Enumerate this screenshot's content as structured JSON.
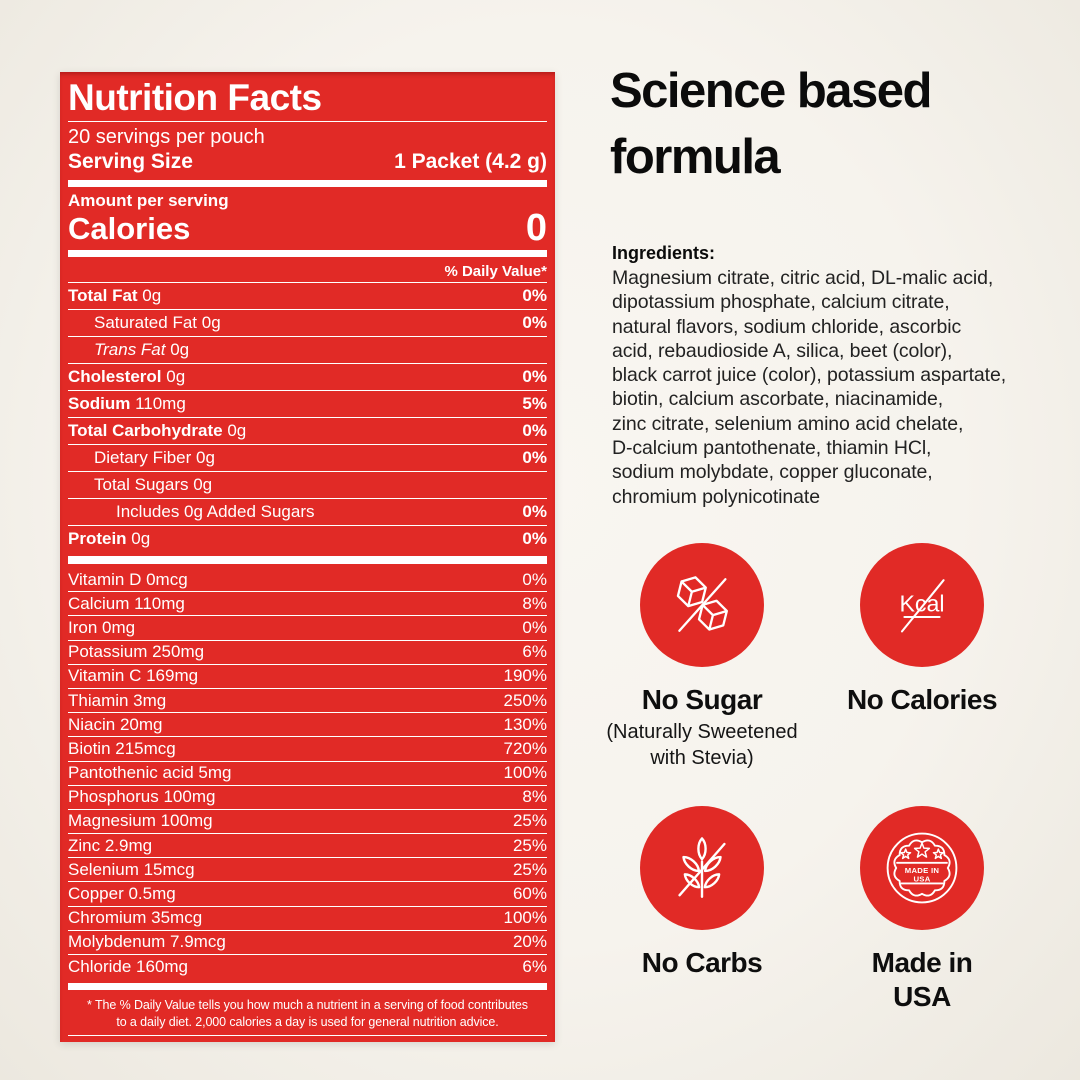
{
  "colors": {
    "red": "#E12A26",
    "background": "#F6F3ED",
    "ink": "#111111",
    "white": "#FFFFFF"
  },
  "label": {
    "title": "Nutrition Facts",
    "servings_line": "20 servings per pouch",
    "serving_size_label": "Serving Size",
    "serving_size_value": "1 Packet (4.2 g)",
    "amount_per_serving": "Amount per serving",
    "calories_label": "Calories",
    "calories_value": "0",
    "daily_value_header": "% Daily Value*",
    "main_rows": [
      {
        "name": "Total Fat",
        "amount": "0g",
        "dv": "0%",
        "bold": true,
        "indent": 0,
        "italic": false
      },
      {
        "name": "Saturated Fat",
        "amount": "0g",
        "dv": "0%",
        "bold": false,
        "indent": 1,
        "italic": false
      },
      {
        "name": "Trans Fat",
        "amount": "0g",
        "dv": "",
        "bold": false,
        "indent": 1,
        "italic": true
      },
      {
        "name": "Cholesterol",
        "amount": "0g",
        "dv": "0%",
        "bold": true,
        "indent": 0,
        "italic": false
      },
      {
        "name": "Sodium",
        "amount": "110mg",
        "dv": "5%",
        "bold": true,
        "indent": 0,
        "italic": false
      },
      {
        "name": "Total Carbohydrate",
        "amount": "0g",
        "dv": "0%",
        "bold": true,
        "indent": 0,
        "italic": false
      },
      {
        "name": "Dietary Fiber",
        "amount": "0g",
        "dv": "0%",
        "bold": false,
        "indent": 1,
        "italic": false
      },
      {
        "name": "Total Sugars",
        "amount": "0g",
        "dv": "",
        "bold": false,
        "indent": 1,
        "italic": false
      },
      {
        "name": "Includes 0g Added Sugars",
        "amount": "",
        "dv": "0%",
        "bold": false,
        "indent": 2,
        "italic": false
      },
      {
        "name": "Protein",
        "amount": "0g",
        "dv": "0%",
        "bold": true,
        "indent": 0,
        "italic": false
      }
    ],
    "vitamin_rows": [
      {
        "name": "Vitamin D 0mcg",
        "dv": "0%"
      },
      {
        "name": "Calcium 110mg",
        "dv": "8%"
      },
      {
        "name": "Iron 0mg",
        "dv": "0%"
      },
      {
        "name": "Potassium 250mg",
        "dv": "6%"
      },
      {
        "name": "Vitamin C 169mg",
        "dv": "190%"
      },
      {
        "name": "Thiamin 3mg",
        "dv": "250%"
      },
      {
        "name": "Niacin 20mg",
        "dv": "130%"
      },
      {
        "name": "Biotin 215mcg",
        "dv": "720%"
      },
      {
        "name": "Pantothenic acid 5mg",
        "dv": "100%"
      },
      {
        "name": "Phosphorus 100mg",
        "dv": "8%"
      },
      {
        "name": "Magnesium 100mg",
        "dv": "25%"
      },
      {
        "name": "Zinc 2.9mg",
        "dv": "25%"
      },
      {
        "name": "Selenium 15mcg",
        "dv": "25%"
      },
      {
        "name": "Copper 0.5mg",
        "dv": "60%"
      },
      {
        "name": "Chromium 35mcg",
        "dv": "100%"
      },
      {
        "name": "Molybdenum 7.9mcg",
        "dv": "20%"
      },
      {
        "name": "Chloride 160mg",
        "dv": "6%"
      }
    ],
    "footnote": "* The % Daily Value tells you how much a nutrient in a serving of food contributes\nto a daily diet. 2,000 calories a day is used for general nutrition advice."
  },
  "right": {
    "heading": "Science based\nformula",
    "ingredients_label": "Ingredients:",
    "ingredients_text": "Magnesium citrate, citric acid, DL-malic acid,\ndipotassium phosphate, calcium citrate,\nnatural flavors, sodium chloride, ascorbic\nacid, rebaudioside A, silica, beet (color),\nblack carrot juice (color), potassium aspartate,\nbiotin, calcium ascorbate, niacinamide,\nzinc citrate, selenium amino acid chelate,\nD-calcium pantothenate, thiamin HCl,\nsodium molybdate, copper gluconate,\nchromium polynicotinate",
    "badges": [
      {
        "icon": "no-sugar-icon",
        "title": "No Sugar",
        "subtitle": "(Naturally Sweetened\nwith Stevia)"
      },
      {
        "icon": "no-calories-icon",
        "title": "No Calories",
        "subtitle": ""
      },
      {
        "icon": "no-carbs-icon",
        "title": "No Carbs",
        "subtitle": ""
      },
      {
        "icon": "made-in-usa-icon",
        "title": "Made in\nUSA",
        "subtitle": ""
      }
    ],
    "kcal_text": "Kcal",
    "usa_seal_line1": "MADE IN",
    "usa_seal_line2": "USA"
  }
}
